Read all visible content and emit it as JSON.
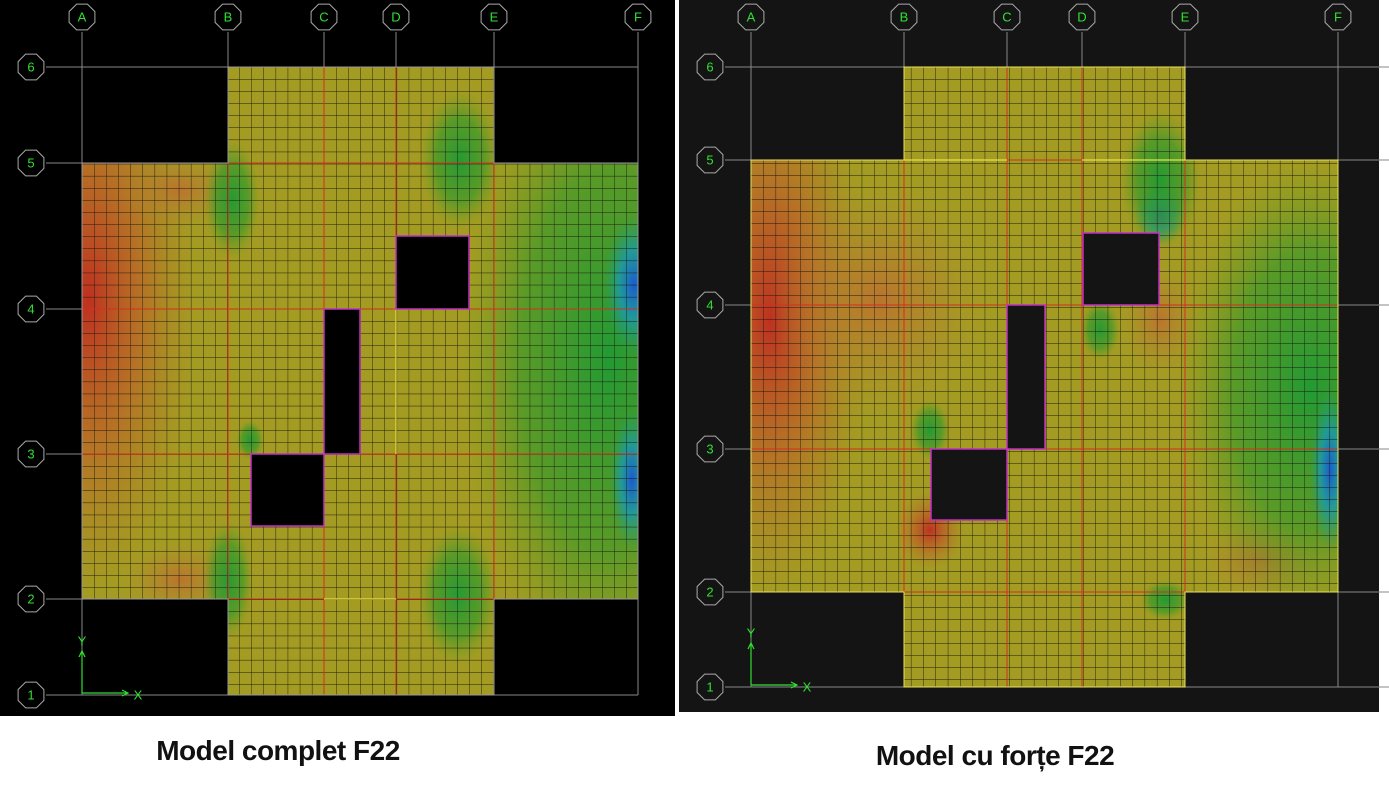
{
  "panels": [
    {
      "columns": [
        "A",
        "B",
        "C",
        "D",
        "E",
        "F"
      ],
      "rows": [
        "1",
        "2",
        "3",
        "4",
        "5",
        "6"
      ],
      "axis_x": "X",
      "axis_y": "Y",
      "caption": "Model complet F22"
    },
    {
      "columns": [
        "A",
        "B",
        "C",
        "D",
        "E",
        "F"
      ],
      "rows": [
        "1",
        "2",
        "3",
        "4",
        "5",
        "6"
      ],
      "axis_x": "X",
      "axis_y": "Y",
      "caption": "Model cu forțe F22"
    }
  ]
}
